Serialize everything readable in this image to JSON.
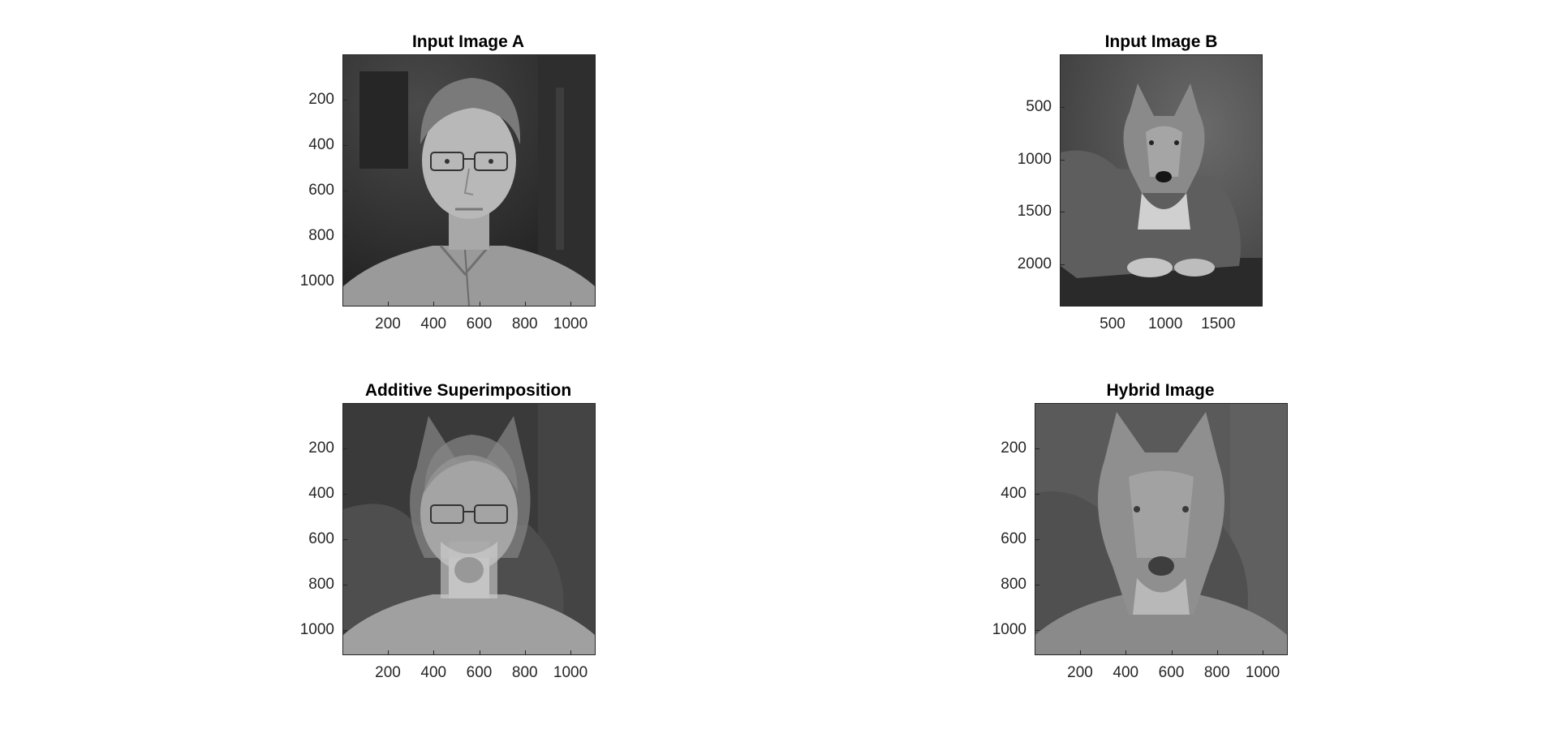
{
  "figure": {
    "panels": [
      {
        "id": "input-a",
        "title": "Input Image A",
        "kind": "portrait",
        "xlim": [
          1,
          1110
        ],
        "ylim": [
          1,
          1110
        ],
        "xticks": [
          200,
          400,
          600,
          800,
          1000
        ],
        "yticks": [
          200,
          400,
          600,
          800,
          1000
        ]
      },
      {
        "id": "input-b",
        "title": "Input Image B",
        "kind": "wolf",
        "xlim": [
          1,
          1920
        ],
        "ylim": [
          1,
          2400
        ],
        "xticks": [
          500,
          1000,
          1500
        ],
        "yticks": [
          500,
          1000,
          1500,
          2000
        ]
      },
      {
        "id": "additive",
        "title": "Additive Superimposition",
        "kind": "blend",
        "xlim": [
          1,
          1110
        ],
        "ylim": [
          1,
          1110
        ],
        "xticks": [
          200,
          400,
          600,
          800,
          1000
        ],
        "yticks": [
          200,
          400,
          600,
          800,
          1000
        ]
      },
      {
        "id": "hybrid",
        "title": "Hybrid Image",
        "kind": "hybrid",
        "xlim": [
          1,
          1110
        ],
        "ylim": [
          1,
          1110
        ],
        "xticks": [
          200,
          400,
          600,
          800,
          1000
        ],
        "yticks": [
          200,
          400,
          600,
          800,
          1000
        ]
      }
    ],
    "colors": {
      "axis": "#262626",
      "background": "#ffffff"
    }
  }
}
